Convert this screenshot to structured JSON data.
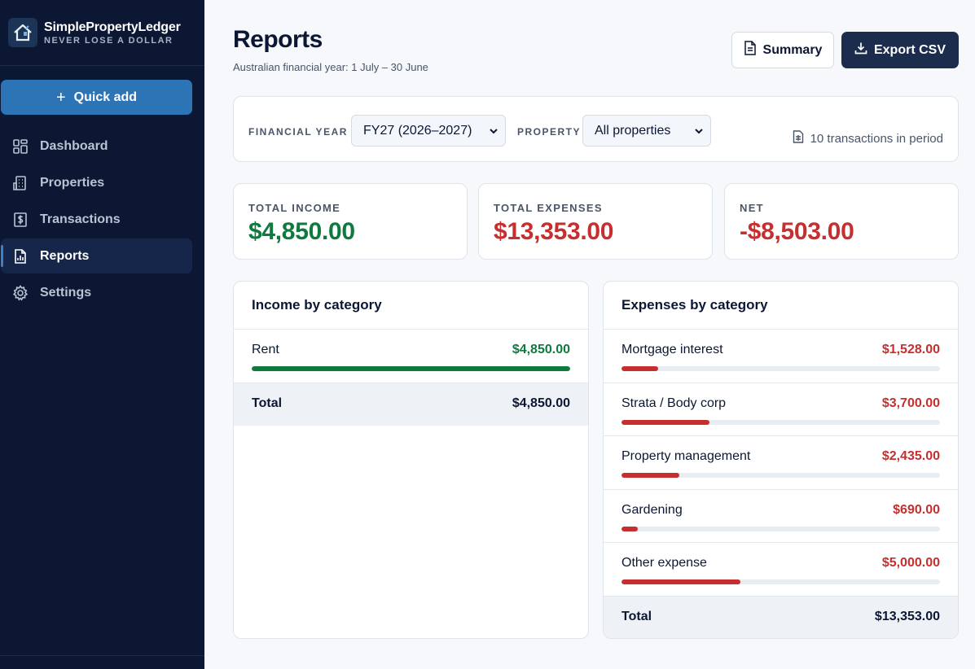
{
  "colors": {
    "sidebar_bg": "#0b1733",
    "accent_blue": "#2d74b6",
    "income_green": "#0e7a3d",
    "expense_red": "#c62f2f",
    "primary_dark": "#1b2c4d"
  },
  "brand": {
    "name": "SimplePropertyLedger",
    "tagline": "NEVER LOSE A DOLLAR",
    "logo_icon": "house-hand-icon"
  },
  "sidebar": {
    "quick_add_label": "Quick add",
    "items": [
      {
        "label": "Dashboard",
        "icon": "grid-icon",
        "active": false
      },
      {
        "label": "Properties",
        "icon": "building-icon",
        "active": false
      },
      {
        "label": "Transactions",
        "icon": "dollar-receipt-icon",
        "active": false
      },
      {
        "label": "Reports",
        "icon": "report-chart-icon",
        "active": true
      },
      {
        "label": "Settings",
        "icon": "gear-icon",
        "active": false
      }
    ]
  },
  "header": {
    "title": "Reports",
    "subtitle": "Australian financial year: 1 July – 30 June",
    "summary_label": "Summary",
    "export_label": "Export CSV"
  },
  "filters": {
    "financial_year_label": "FINANCIAL YEAR",
    "financial_year_value": "FY27 (2026–2027)",
    "property_label": "PROPERTY",
    "property_value": "All properties",
    "transaction_count": "10 transactions in period"
  },
  "stats": {
    "income_label": "TOTAL INCOME",
    "income_value": "$4,850.00",
    "expenses_label": "TOTAL EXPENSES",
    "expenses_value": "$13,353.00",
    "net_label": "NET",
    "net_value": "-$8,503.00"
  },
  "income": {
    "title": "Income by category",
    "rows": [
      {
        "name": "Rent",
        "amount": "$4,850.00",
        "share": 1.0
      }
    ],
    "total_label": "Total",
    "total_amount": "$4,850.00"
  },
  "expenses": {
    "title": "Expenses by category",
    "rows": [
      {
        "name": "Mortgage interest",
        "amount": "$1,528.00",
        "share": 0.114
      },
      {
        "name": "Strata / Body corp",
        "amount": "$3,700.00",
        "share": 0.277
      },
      {
        "name": "Property management",
        "amount": "$2,435.00",
        "share": 0.182
      },
      {
        "name": "Gardening",
        "amount": "$690.00",
        "share": 0.052
      },
      {
        "name": "Other expense",
        "amount": "$5,000.00",
        "share": 0.374
      }
    ],
    "total_label": "Total",
    "total_amount": "$13,353.00"
  }
}
